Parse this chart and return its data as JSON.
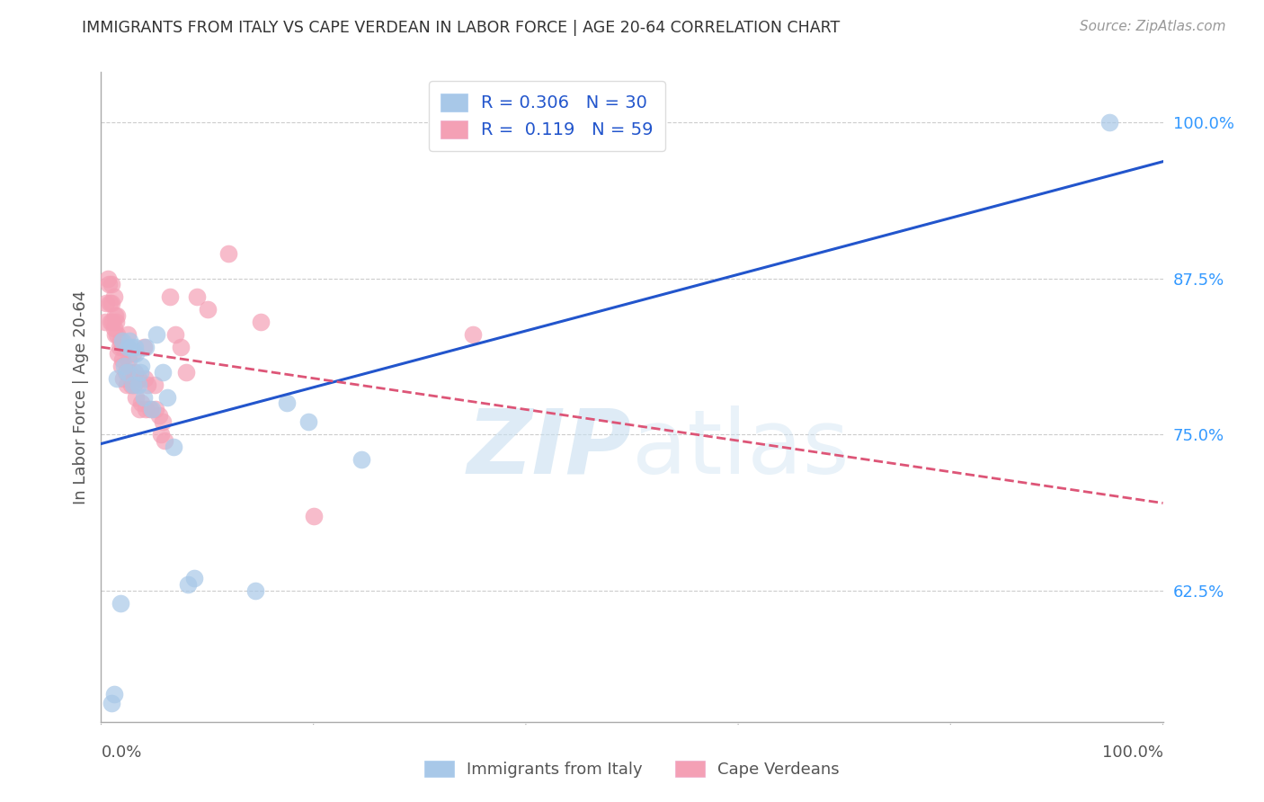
{
  "title": "IMMIGRANTS FROM ITALY VS CAPE VERDEAN IN LABOR FORCE | AGE 20-64 CORRELATION CHART",
  "source": "Source: ZipAtlas.com",
  "ylabel": "In Labor Force | Age 20-64",
  "yticks": [
    0.625,
    0.75,
    0.875,
    1.0
  ],
  "ytick_labels": [
    "62.5%",
    "75.0%",
    "87.5%",
    "100.0%"
  ],
  "xlim": [
    0.0,
    1.0
  ],
  "ylim": [
    0.52,
    1.04
  ],
  "italy_R": 0.306,
  "italy_N": 30,
  "cv_R": 0.119,
  "cv_N": 59,
  "italy_color": "#a8c8e8",
  "cv_color": "#f4a0b5",
  "italy_line_color": "#2255cc",
  "cv_line_color": "#dd5577",
  "legend_label_italy": "Immigrants from Italy",
  "legend_label_cv": "Cape Verdeans",
  "watermark_zip": "ZIP",
  "watermark_atlas": "atlas",
  "italy_x": [
    0.01,
    0.012,
    0.015,
    0.018,
    0.02,
    0.022,
    0.024,
    0.025,
    0.027,
    0.028,
    0.03,
    0.032,
    0.033,
    0.035,
    0.037,
    0.038,
    0.04,
    0.042,
    0.048,
    0.052,
    0.058,
    0.062,
    0.068,
    0.082,
    0.088,
    0.145,
    0.175,
    0.195,
    0.245,
    0.95
  ],
  "italy_y": [
    0.535,
    0.542,
    0.795,
    0.615,
    0.825,
    0.805,
    0.8,
    0.82,
    0.825,
    0.82,
    0.79,
    0.82,
    0.815,
    0.79,
    0.8,
    0.805,
    0.78,
    0.82,
    0.77,
    0.83,
    0.8,
    0.78,
    0.74,
    0.63,
    0.635,
    0.625,
    0.775,
    0.76,
    0.73,
    1.0
  ],
  "cv_x": [
    0.004,
    0.005,
    0.006,
    0.007,
    0.008,
    0.009,
    0.01,
    0.01,
    0.011,
    0.012,
    0.012,
    0.013,
    0.013,
    0.014,
    0.015,
    0.015,
    0.016,
    0.017,
    0.018,
    0.019,
    0.02,
    0.02,
    0.021,
    0.022,
    0.023,
    0.024,
    0.025,
    0.025,
    0.026,
    0.027,
    0.028,
    0.03,
    0.031,
    0.032,
    0.033,
    0.035,
    0.036,
    0.038,
    0.04,
    0.041,
    0.042,
    0.044,
    0.046,
    0.05,
    0.051,
    0.055,
    0.056,
    0.058,
    0.06,
    0.065,
    0.07,
    0.075,
    0.08,
    0.09,
    0.1,
    0.12,
    0.15,
    0.2,
    0.35
  ],
  "cv_y": [
    0.84,
    0.855,
    0.875,
    0.87,
    0.855,
    0.84,
    0.87,
    0.855,
    0.84,
    0.86,
    0.835,
    0.845,
    0.83,
    0.84,
    0.845,
    0.83,
    0.815,
    0.82,
    0.825,
    0.805,
    0.82,
    0.81,
    0.795,
    0.82,
    0.8,
    0.79,
    0.83,
    0.82,
    0.81,
    0.8,
    0.79,
    0.815,
    0.79,
    0.8,
    0.78,
    0.795,
    0.77,
    0.775,
    0.82,
    0.795,
    0.77,
    0.79,
    0.77,
    0.79,
    0.77,
    0.765,
    0.75,
    0.76,
    0.745,
    0.86,
    0.83,
    0.82,
    0.8,
    0.86,
    0.85,
    0.895,
    0.84,
    0.685,
    0.83
  ]
}
